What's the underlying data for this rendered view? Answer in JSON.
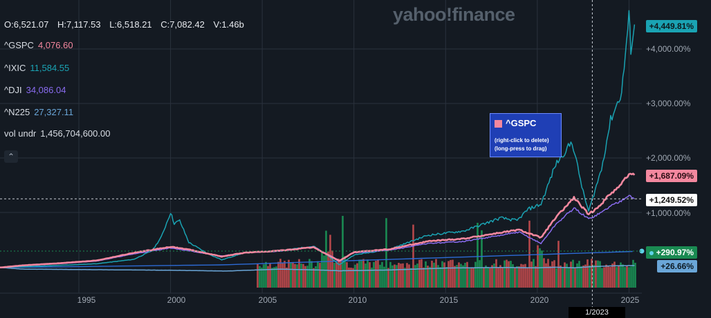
{
  "watermark": "yahoo!finance",
  "ohlc": {
    "o": "O:6,521.07",
    "h": "H:7,117.53",
    "l": "L:6,518.21",
    "c": "C:7,082.42",
    "v": "V:1.46b"
  },
  "legend": [
    {
      "symbol": "^GSPC",
      "value": "4,076.60",
      "color": "#f4889f"
    },
    {
      "symbol": "^IXIC",
      "value": "11,584.55",
      "color": "#1aa3b3"
    },
    {
      "symbol": "^DJI",
      "value": "34,086.04",
      "color": "#8a6cf0"
    },
    {
      "symbol": "^N225",
      "value": "27,327.11",
      "color": "#6aa6d8"
    },
    {
      "symbol": "vol undr",
      "value": "1,456,704,600.00",
      "color": "#d8dde4"
    }
  ],
  "collapse_icon": "chevron-up-icon",
  "tooltip": {
    "title": "^GSPC",
    "line1": "(right-click to delete)",
    "line2": "(long-press to drag)"
  },
  "badges": [
    {
      "text": "+4,449.81%",
      "bg": "#1aa3b3",
      "fg": "#0d1a1d",
      "pct": 4449.81
    },
    {
      "text": "+1,687.09%",
      "bg": "#f4889f",
      "fg": "#2a0d14",
      "pct": 1687.09
    },
    {
      "text": "+1,249.52%",
      "bg": "#ffffff",
      "fg": "#111111",
      "pct": 1249.52
    },
    {
      "text": "+290.97%",
      "bg": "#1a8a52",
      "fg": "#ffffff",
      "pct": 290.97
    },
    {
      "text": "+26.66%",
      "bg": "#6aa6d8",
      "fg": "#0d1a22",
      "pct": 26.66
    }
  ],
  "x_crosshair_label": "1/2023",
  "chart_data": {
    "type": "line",
    "x_ticks": [
      "1995",
      "2000",
      "2005",
      "2010",
      "2015",
      "2020",
      "2025"
    ],
    "y_ticks": [
      "+1,000.00%",
      "+2,000.00%",
      "+3,000.00%",
      "+4,000.00%"
    ],
    "y_tick_values": [
      1000,
      2000,
      3000,
      4000
    ],
    "xlim": [
      1990.7,
      2025.7
    ],
    "ylim": [
      -800,
      4800
    ],
    "crosshair": {
      "x": 2023.0,
      "y": 1249.52
    },
    "series": [
      {
        "name": "^IXIC",
        "color": "#1aa3b3",
        "x": [
          1990.7,
          1992,
          1994,
          1996,
          1998,
          1999,
          1999.5,
          2000.0,
          2000.2,
          2000.5,
          2001,
          2002,
          2002.8,
          2004,
          2006,
          2007.8,
          2008.5,
          2009.2,
          2010,
          2012,
          2014,
          2016,
          2018,
          2018.9,
          2019.5,
          2020.2,
          2021,
          2021.9,
          2022.5,
          2022.8,
          2023.5,
          2024,
          2024.6,
          2025.0,
          2025.1,
          2025.3
        ],
        "y": [
          -8,
          5,
          30,
          60,
          140,
          300,
          550,
          1000,
          800,
          850,
          450,
          250,
          130,
          260,
          300,
          380,
          230,
          40,
          220,
          330,
          580,
          660,
          900,
          850,
          1060,
          1150,
          1880,
          2300,
          1370,
          1020,
          1800,
          2700,
          3200,
          4600,
          4000,
          4449.81
        ]
      },
      {
        "name": "^GSPC",
        "color": "#f4889f",
        "x": [
          1990.7,
          1992,
          1994,
          1996,
          1998,
          2000,
          2001,
          2002.8,
          2004,
          2006,
          2007.8,
          2009.2,
          2010,
          2012,
          2014,
          2016,
          2018,
          2019,
          2020.2,
          2021,
          2022,
          2022.8,
          2023.5,
          2024,
          2024.5,
          2025.0,
          2025.3
        ],
        "y": [
          -10,
          30,
          70,
          120,
          260,
          370,
          320,
          190,
          260,
          300,
          360,
          110,
          270,
          330,
          470,
          520,
          630,
          680,
          540,
          900,
          1270,
          960,
          1160,
          1350,
          1500,
          1700,
          1687.09
        ]
      },
      {
        "name": "^DJI",
        "color": "#8a6cf0",
        "x": [
          1990.7,
          1992,
          1994,
          1996,
          1998,
          2000,
          2002.8,
          2004,
          2006,
          2007.8,
          2009.2,
          2010,
          2012,
          2014,
          2016,
          2018,
          2019,
          2020.2,
          2021,
          2022,
          2022.8,
          2023.5,
          2024,
          2024.5,
          2025.0,
          2025.3
        ],
        "y": [
          -12,
          25,
          60,
          110,
          240,
          350,
          200,
          260,
          290,
          370,
          120,
          260,
          310,
          430,
          470,
          580,
          640,
          430,
          780,
          1080,
          880,
          1000,
          1120,
          1200,
          1330,
          1249.52
        ]
      },
      {
        "name": "^N225",
        "color": "#6aa6d8",
        "x": [
          1990.7,
          1992,
          1996,
          2000,
          2003,
          2006,
          2008,
          2009.2,
          2012,
          2015,
          2018,
          2020,
          2021,
          2022,
          2023,
          2024,
          2025.3
        ],
        "y": [
          -10,
          -40,
          -50,
          -60,
          -75,
          -40,
          -55,
          -70,
          -55,
          -20,
          -10,
          -15,
          -5,
          -15,
          5,
          20,
          26.66
        ]
      }
    ],
    "volume_series": {
      "name": "vol undr",
      "color_up": "#1a8a52",
      "color_down": "#b5474a",
      "pct_line_color": "#2d6bd6",
      "last_pct": 290.97
    }
  }
}
